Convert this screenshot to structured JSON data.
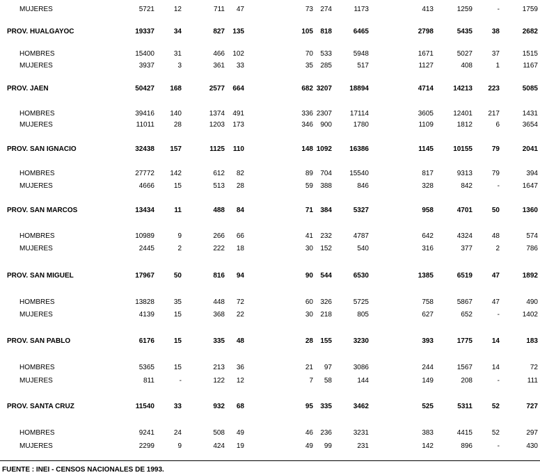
{
  "rows": [
    {
      "kind": "sub",
      "label": "MUJERES",
      "values": [
        "5721",
        "12",
        "711",
        "47",
        "73",
        "274",
        "1173",
        "413",
        "1259",
        "-",
        "1759"
      ]
    },
    {
      "kind": "prov",
      "label": "PROV.  HUALGAYOC",
      "values": [
        "19337",
        "34",
        "827",
        "135",
        "105",
        "818",
        "6465",
        "2798",
        "5435",
        "38",
        "2682"
      ]
    },
    {
      "kind": "sub",
      "label": "HOMBRES",
      "values": [
        "15400",
        "31",
        "466",
        "102",
        "70",
        "533",
        "5948",
        "1671",
        "5027",
        "37",
        "1515"
      ]
    },
    {
      "kind": "sub",
      "label": "MUJERES",
      "values": [
        "3937",
        "3",
        "361",
        "33",
        "35",
        "285",
        "517",
        "1127",
        "408",
        "1",
        "1167"
      ]
    },
    {
      "kind": "prov",
      "label": "PROV.  JAEN",
      "values": [
        "50427",
        "168",
        "2577",
        "664",
        "682",
        "3207",
        "18894",
        "4714",
        "14213",
        "223",
        "5085"
      ]
    },
    {
      "kind": "sub",
      "label": "HOMBRES",
      "values": [
        "39416",
        "140",
        "1374",
        "491",
        "336",
        "2307",
        "17114",
        "3605",
        "12401",
        "217",
        "1431"
      ]
    },
    {
      "kind": "sub",
      "label": "MUJERES",
      "values": [
        "11011",
        "28",
        "1203",
        "173",
        "346",
        "900",
        "1780",
        "1109",
        "1812",
        "6",
        "3654"
      ]
    },
    {
      "kind": "prov",
      "label": "PROV.  SAN IGNACIO",
      "values": [
        "32438",
        "157",
        "1125",
        "110",
        "148",
        "1092",
        "16386",
        "1145",
        "10155",
        "79",
        "2041"
      ]
    },
    {
      "kind": "sub",
      "label": "HOMBRES",
      "values": [
        "27772",
        "142",
        "612",
        "82",
        "89",
        "704",
        "15540",
        "817",
        "9313",
        "79",
        "394"
      ]
    },
    {
      "kind": "sub",
      "label": "MUJERES",
      "values": [
        "4666",
        "15",
        "513",
        "28",
        "59",
        "388",
        "846",
        "328",
        "842",
        "-",
        "1647"
      ]
    },
    {
      "kind": "prov",
      "label": "PROV.  SAN MARCOS",
      "values": [
        "13434",
        "11",
        "488",
        "84",
        "71",
        "384",
        "5327",
        "958",
        "4701",
        "50",
        "1360"
      ]
    },
    {
      "kind": "sub",
      "label": "HOMBRES",
      "values": [
        "10989",
        "9",
        "266",
        "66",
        "41",
        "232",
        "4787",
        "642",
        "4324",
        "48",
        "574"
      ]
    },
    {
      "kind": "sub",
      "label": "MUJERES",
      "values": [
        "2445",
        "2",
        "222",
        "18",
        "30",
        "152",
        "540",
        "316",
        "377",
        "2",
        "786"
      ]
    },
    {
      "kind": "prov",
      "label": "PROV.  SAN MIGUEL",
      "values": [
        "17967",
        "50",
        "816",
        "94",
        "90",
        "544",
        "6530",
        "1385",
        "6519",
        "47",
        "1892"
      ]
    },
    {
      "kind": "sub",
      "label": "HOMBRES",
      "values": [
        "13828",
        "35",
        "448",
        "72",
        "60",
        "326",
        "5725",
        "758",
        "5867",
        "47",
        "490"
      ]
    },
    {
      "kind": "sub",
      "label": "MUJERES",
      "values": [
        "4139",
        "15",
        "368",
        "22",
        "30",
        "218",
        "805",
        "627",
        "652",
        "-",
        "1402"
      ]
    },
    {
      "kind": "prov",
      "label": "PROV.  SAN PABLO",
      "values": [
        "6176",
        "15",
        "335",
        "48",
        "28",
        "155",
        "3230",
        "393",
        "1775",
        "14",
        "183"
      ]
    },
    {
      "kind": "sub",
      "label": "HOMBRES",
      "values": [
        "5365",
        "15",
        "213",
        "36",
        "21",
        "97",
        "3086",
        "244",
        "1567",
        "14",
        "72"
      ]
    },
    {
      "kind": "sub",
      "label": "MUJERES",
      "values": [
        "811",
        "-",
        "122",
        "12",
        "7",
        "58",
        "144",
        "149",
        "208",
        "-",
        "111"
      ]
    },
    {
      "kind": "prov",
      "label": "PROV.  SANTA CRUZ",
      "values": [
        "11540",
        "33",
        "932",
        "68",
        "95",
        "335",
        "3462",
        "525",
        "5311",
        "52",
        "727"
      ]
    },
    {
      "kind": "sub",
      "label": "HOMBRES",
      "values": [
        "9241",
        "24",
        "508",
        "49",
        "46",
        "236",
        "3231",
        "383",
        "4415",
        "52",
        "297"
      ]
    },
    {
      "kind": "sub",
      "label": "MUJERES",
      "values": [
        "2299",
        "9",
        "424",
        "19",
        "49",
        "99",
        "231",
        "142",
        "896",
        "-",
        "430"
      ]
    }
  ],
  "footer": "FUENTE : INEI - CENSOS NACIONALES DE 1993."
}
